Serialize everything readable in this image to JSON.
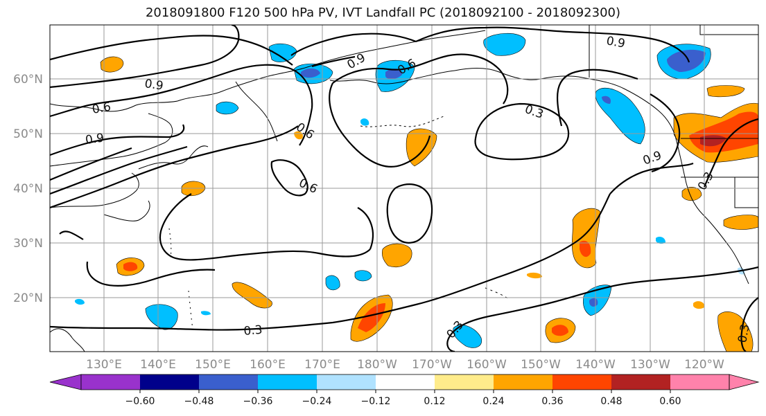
{
  "title": "2018091800 F120 500 hPa PV, IVT Landfall PC (2018092100 - 2018092300)",
  "map": {
    "lon_labels": [
      "130°E",
      "140°E",
      "150°E",
      "160°E",
      "170°E",
      "180°W",
      "170°W",
      "160°W",
      "150°W",
      "140°W",
      "130°W",
      "120°W"
    ],
    "lat_labels": [
      "60°N",
      "50°N",
      "40°N",
      "30°N",
      "20°N"
    ],
    "contour_labels": [
      "0.9",
      "0.6",
      "0.9",
      "0.6",
      "0.9",
      "0.6",
      "0.6",
      "0.3",
      "0.9",
      "0.9",
      "0.3",
      "0.3",
      "0.3",
      "0.3"
    ],
    "contour_color": "#000000",
    "grid_color": "#9a9a9a"
  },
  "colorbar": {
    "colors": [
      "#9932cc",
      "#00008b",
      "#3a5fcd",
      "#00bfff",
      "#b0e2ff",
      "#ffffff",
      "#ffec8b",
      "#ffa500",
      "#ff4500",
      "#b22222",
      "#ff82ab"
    ],
    "tick_labels": [
      "−0.60",
      "−0.48",
      "−0.36",
      "−0.24",
      "−0.12",
      "0.12",
      "0.24",
      "0.36",
      "0.48",
      "0.60"
    ]
  }
}
